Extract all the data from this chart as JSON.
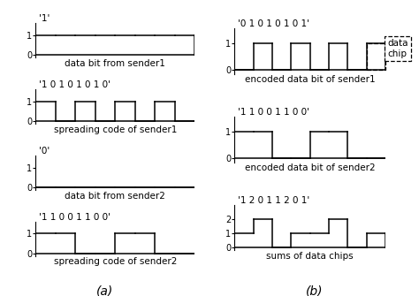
{
  "fig_width": 4.74,
  "fig_height": 3.35,
  "background_color": "#ffffff",
  "left_plots": [
    {
      "title": "'1'",
      "xlabel": "data bit from sender1",
      "signal": [
        1,
        1,
        1,
        1,
        1,
        1,
        1,
        1
      ],
      "yticks": [
        0,
        1
      ],
      "ylim": [
        -0.15,
        1.6
      ]
    },
    {
      "title": "'1 0 1 0 1 0 1 0'",
      "xlabel": "spreading code of sender1",
      "signal": [
        1,
        0,
        1,
        0,
        1,
        0,
        1,
        0
      ],
      "yticks": [
        0,
        1
      ],
      "ylim": [
        -0.15,
        1.6
      ]
    },
    {
      "title": "'0'",
      "xlabel": "data bit from sender2",
      "signal": [
        0,
        0,
        0,
        0,
        0,
        0,
        0,
        0
      ],
      "yticks": [
        0,
        1
      ],
      "ylim": [
        -0.15,
        1.6
      ]
    },
    {
      "title": "'1 1 0 0 1 1 0 0'",
      "xlabel": "spreading code of sender2",
      "signal": [
        1,
        1,
        0,
        0,
        1,
        1,
        0,
        0
      ],
      "yticks": [
        0,
        1
      ],
      "ylim": [
        -0.15,
        1.6
      ]
    }
  ],
  "right_plots": [
    {
      "title": "'0 1 0 1 0 1 0 1'",
      "xlabel": "encoded data bit of sender1",
      "signal": [
        0,
        1,
        0,
        1,
        0,
        1,
        0,
        1
      ],
      "yticks": [
        0,
        1
      ],
      "ylim": [
        -0.15,
        1.6
      ],
      "dashed_box": true
    },
    {
      "title": "'1 1 0 0 1 1 0 0'",
      "xlabel": "encoded data bit of sender2",
      "signal": [
        1,
        1,
        0,
        0,
        1,
        1,
        0,
        0
      ],
      "yticks": [
        0,
        1
      ],
      "ylim": [
        -0.15,
        1.6
      ],
      "dashed_box": false
    },
    {
      "title": "'1 2 0 1 1 2 0 1'",
      "xlabel": "sums of data chips",
      "signal": [
        1,
        2,
        0,
        1,
        1,
        2,
        0,
        1
      ],
      "yticks": [
        0,
        1,
        2
      ],
      "ylim": [
        -0.2,
        3.0
      ],
      "dashed_box": false
    }
  ],
  "a_label": "(a)",
  "b_label": "(b)",
  "data_chip_label": "data\nchip"
}
